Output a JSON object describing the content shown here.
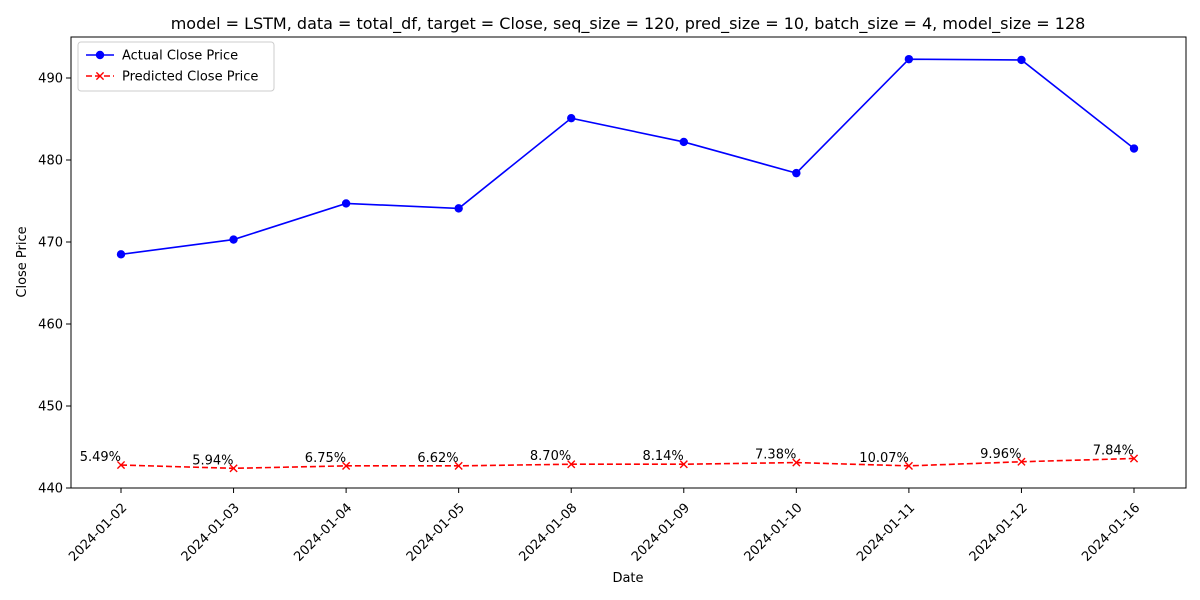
{
  "chart_data": {
    "type": "line",
    "title": "model = LSTM, data = total_df, target = Close, seq_size = 120, pred_size = 10, batch_size = 4, model_size = 128",
    "xlabel": "Date",
    "ylabel": "Close Price",
    "categories": [
      "2024-01-02",
      "2024-01-03",
      "2024-01-04",
      "2024-01-05",
      "2024-01-08",
      "2024-01-09",
      "2024-01-10",
      "2024-01-11",
      "2024-01-12",
      "2024-01-16"
    ],
    "ylim": [
      440,
      495
    ],
    "yticks": [
      440,
      450,
      460,
      470,
      480,
      490
    ],
    "grid": false,
    "legend_position": "top-left",
    "series": [
      {
        "name": "Actual Close Price",
        "color": "#0000ff",
        "linestyle": "solid",
        "marker": "circle",
        "values": [
          468.5,
          470.3,
          474.7,
          474.1,
          485.1,
          482.2,
          478.4,
          492.3,
          492.2,
          481.4
        ]
      },
      {
        "name": "Predicted Close Price",
        "color": "#ff0000",
        "linestyle": "dashed",
        "marker": "x",
        "values": [
          442.8,
          442.4,
          442.7,
          442.7,
          442.9,
          442.9,
          443.1,
          442.7,
          443.2,
          443.6
        ]
      }
    ],
    "annotations": [
      "5.49%",
      "5.94%",
      "6.75%",
      "6.62%",
      "8.70%",
      "8.14%",
      "7.38%",
      "10.07%",
      "9.96%",
      "7.84%"
    ]
  }
}
